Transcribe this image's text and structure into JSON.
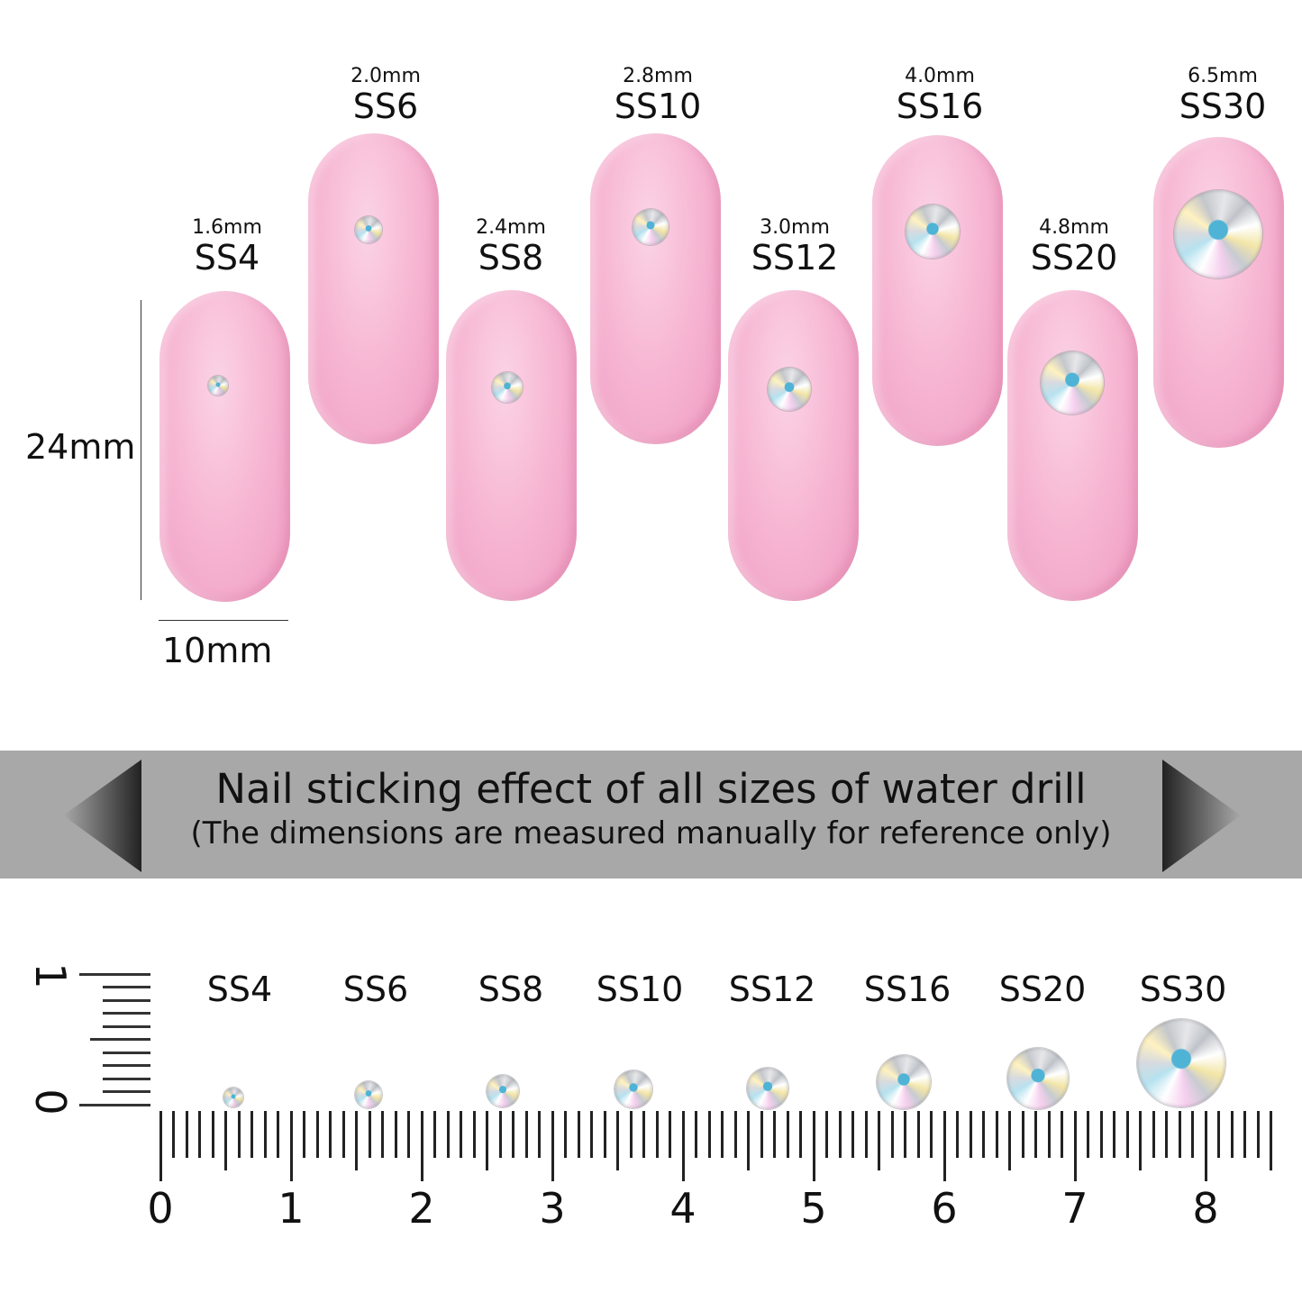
{
  "sizes": [
    {
      "name": "SS4",
      "mm": "1.6mm"
    },
    {
      "name": "SS6",
      "mm": "2.0mm"
    },
    {
      "name": "SS8",
      "mm": "2.4mm"
    },
    {
      "name": "SS10",
      "mm": "2.8mm"
    },
    {
      "name": "SS12",
      "mm": "3.0mm"
    },
    {
      "name": "SS16",
      "mm": "4.0mm"
    },
    {
      "name": "SS20",
      "mm": "4.8mm"
    },
    {
      "name": "SS30",
      "mm": "6.5mm"
    }
  ],
  "dimensions": {
    "height": "24mm",
    "width": "10mm"
  },
  "banner": {
    "title": "Nail sticking effect of all sizes of water drill",
    "subtitle": "(The dimensions are measured manually for reference only)"
  },
  "ruler": {
    "labels": [
      "0",
      "1",
      "2",
      "3",
      "4",
      "5",
      "6",
      "7",
      "8"
    ],
    "vertical_labels": [
      "0",
      "1"
    ]
  },
  "colors": {
    "nail": "#f7b8d4",
    "banner": "#a8a8a8"
  }
}
